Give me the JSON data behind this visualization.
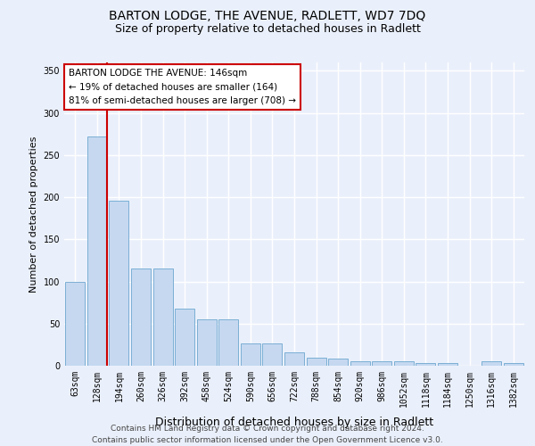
{
  "title": "BARTON LODGE, THE AVENUE, RADLETT, WD7 7DQ",
  "subtitle": "Size of property relative to detached houses in Radlett",
  "xlabel": "Distribution of detached houses by size in Radlett",
  "ylabel": "Number of detached properties",
  "categories": [
    "63sqm",
    "128sqm",
    "194sqm",
    "260sqm",
    "326sqm",
    "392sqm",
    "458sqm",
    "524sqm",
    "590sqm",
    "656sqm",
    "722sqm",
    "788sqm",
    "854sqm",
    "920sqm",
    "986sqm",
    "1052sqm",
    "1118sqm",
    "1184sqm",
    "1250sqm",
    "1316sqm",
    "1382sqm"
  ],
  "values": [
    100,
    272,
    196,
    115,
    115,
    68,
    55,
    55,
    26,
    26,
    16,
    10,
    8,
    5,
    5,
    5,
    3,
    3,
    0,
    5,
    3
  ],
  "bar_color": "#c5d8f0",
  "bar_edge_color": "#7bafd4",
  "vline_x_index": 1,
  "marker_label": "BARTON LODGE THE AVENUE: 146sqm",
  "annotation_line1": "← 19% of detached houses are smaller (164)",
  "annotation_line2": "81% of semi-detached houses are larger (708) →",
  "annotation_box_color": "#ffffff",
  "annotation_border_color": "#cc0000",
  "vline_color": "#cc0000",
  "ylim": [
    0,
    360
  ],
  "yticks": [
    0,
    50,
    100,
    150,
    200,
    250,
    300,
    350
  ],
  "footer_line1": "Contains HM Land Registry data © Crown copyright and database right 2024.",
  "footer_line2": "Contains public sector information licensed under the Open Government Licence v3.0.",
  "bg_color": "#eaf0fb",
  "grid_color": "#ffffff",
  "title_fontsize": 10,
  "subtitle_fontsize": 9,
  "ylabel_fontsize": 8,
  "xlabel_fontsize": 9,
  "tick_fontsize": 7,
  "annotation_fontsize": 7.5,
  "footer_fontsize": 6.5
}
